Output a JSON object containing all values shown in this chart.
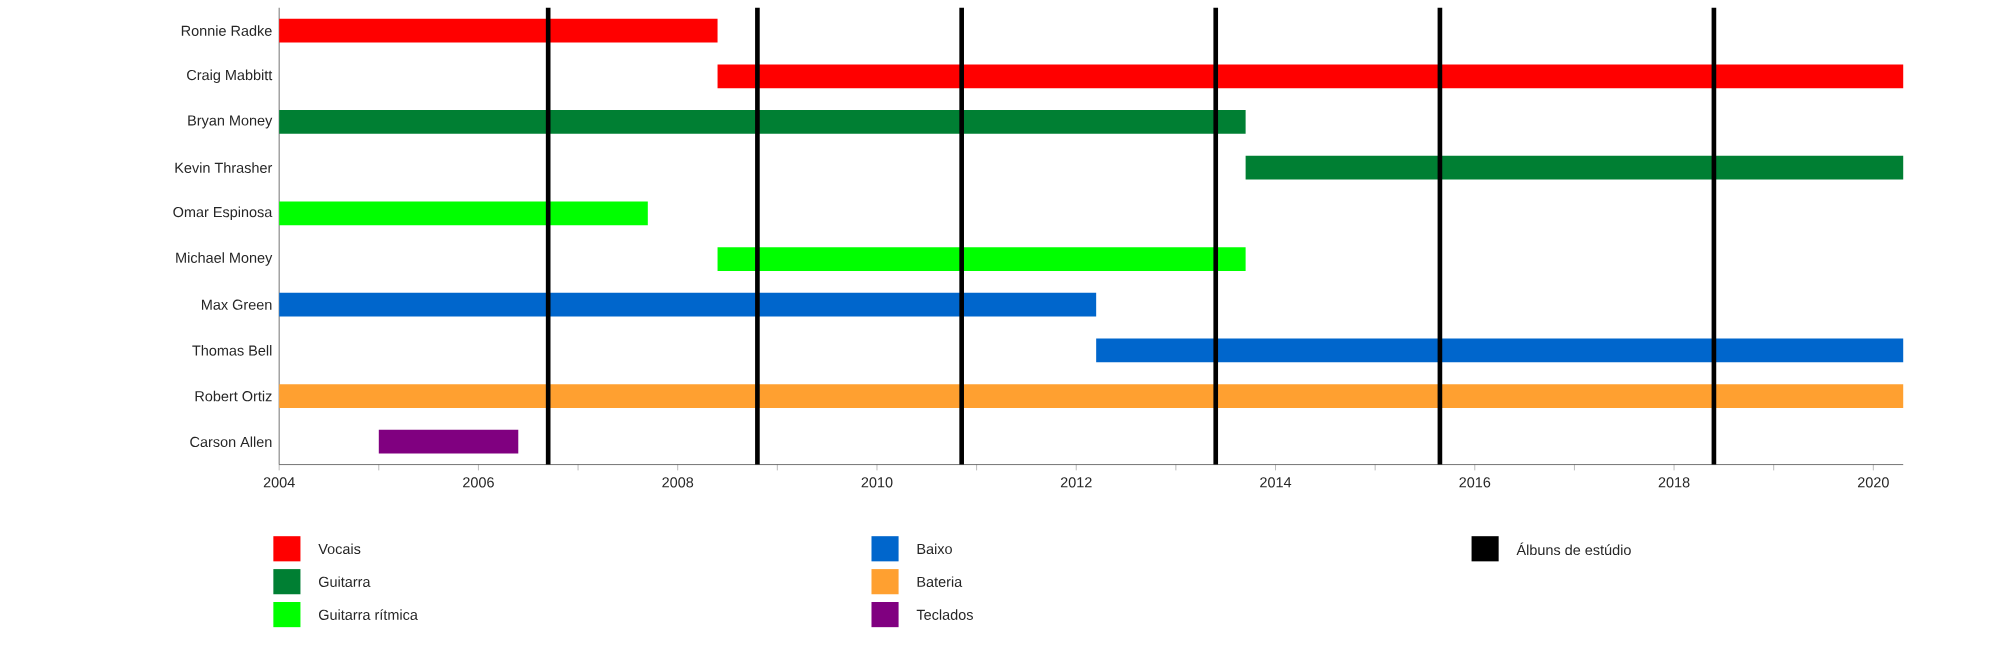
{
  "chart_data": {
    "type": "bar",
    "orientation": "horizontal",
    "categories": [
      "Ronnie Radke",
      "Craig Mabbitt",
      "Bryan Money",
      "Kevin Thrasher",
      "Omar Espinosa",
      "Michael Money",
      "Max Green",
      "Thomas Bell",
      "Robert Ortiz",
      "Carson Allen"
    ],
    "series": [
      {
        "name": "Vocais",
        "color": "#ff0000",
        "values": [
          4.4,
          11.9,
          null,
          null,
          null,
          null,
          null,
          null,
          null,
          null
        ],
        "base": [
          2004,
          2008.4,
          null,
          null,
          null,
          null,
          null,
          null,
          null,
          null
        ]
      },
      {
        "name": "Guitarra",
        "color": "#007f33",
        "values": [
          null,
          null,
          9.7,
          6.6,
          null,
          null,
          null,
          null,
          null,
          null
        ],
        "base": [
          null,
          null,
          2004,
          2013.7,
          null,
          null,
          null,
          null,
          null,
          null
        ]
      },
      {
        "name": "Guitarra rítmica",
        "color": "#00ff00",
        "values": [
          null,
          null,
          null,
          null,
          3.7,
          5.3,
          null,
          null,
          null,
          null
        ],
        "base": [
          null,
          null,
          null,
          null,
          2004,
          2008.4,
          null,
          null,
          null,
          null
        ]
      },
      {
        "name": "Baixo",
        "color": "#0066cc",
        "values": [
          null,
          null,
          null,
          null,
          null,
          null,
          8.2,
          8.1,
          null,
          null
        ],
        "base": [
          null,
          null,
          null,
          null,
          null,
          null,
          2004,
          2012.2,
          null,
          null
        ]
      },
      {
        "name": "Bateria",
        "color": "#ffa030",
        "values": [
          null,
          null,
          null,
          null,
          null,
          null,
          null,
          null,
          16.3,
          null
        ],
        "base": [
          null,
          null,
          null,
          null,
          null,
          null,
          null,
          null,
          2004,
          null
        ]
      },
      {
        "name": "Teclados",
        "color": "#800080",
        "values": [
          null,
          null,
          null,
          null,
          null,
          null,
          null,
          null,
          null,
          1.4
        ],
        "base": [
          null,
          null,
          null,
          null,
          null,
          null,
          null,
          null,
          null,
          2005
        ]
      }
    ],
    "ref_lines": [
      {
        "axis": "x",
        "value": 2006.7,
        "label": "Álbuns de estúdio",
        "color": "#000000"
      },
      {
        "axis": "x",
        "value": 2008.8,
        "color": "#000000"
      },
      {
        "axis": "x",
        "value": 2010.85,
        "color": "#000000"
      },
      {
        "axis": "x",
        "value": 2013.4,
        "color": "#000000"
      },
      {
        "axis": "x",
        "value": 2015.65,
        "color": "#000000"
      },
      {
        "axis": "x",
        "value": 2018.4,
        "color": "#000000"
      }
    ],
    "xlim": [
      2004,
      2020.3
    ],
    "xticks": [
      2004,
      {
        "value": 2005,
        "label": null
      },
      2006,
      {
        "value": 2007,
        "label": null
      },
      2008,
      {
        "value": 2009,
        "label": null
      },
      2010,
      {
        "value": 2011,
        "label": null
      },
      2012,
      {
        "value": 2013,
        "label": null
      },
      2014,
      {
        "value": 2015,
        "label": null
      },
      2016,
      {
        "value": 2017,
        "label": null
      },
      2018,
      {
        "value": 2019,
        "label": null
      },
      2020
    ],
    "legend": "bottom",
    "grid": false
  }
}
